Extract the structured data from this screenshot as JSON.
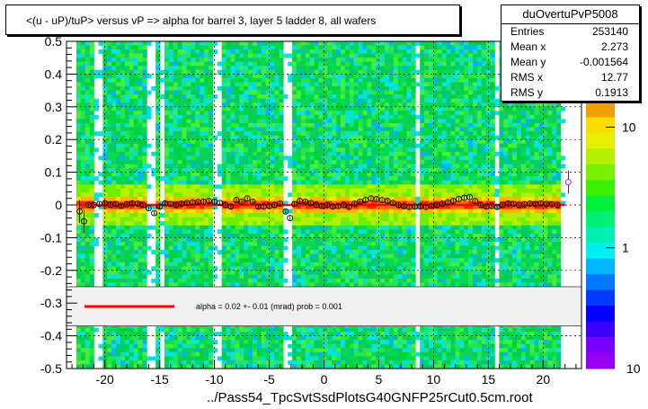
{
  "title": "<(u - uP)/tuP> versus   vP => alpha for barrel 3, layer 5 ladder 8, all wafers",
  "stats": {
    "name": "duOvertuPvP5008",
    "rows": [
      {
        "key": "Entries",
        "value": "253140"
      },
      {
        "key": "Mean x",
        "value": "2.273"
      },
      {
        "key": "Mean y",
        "value": "-0.001564"
      },
      {
        "key": "RMS x",
        "value": "12.77"
      },
      {
        "key": "RMS y",
        "value": "0.1913"
      }
    ]
  },
  "filename": "../Pass54_TpcSvtSsdPlotsG40GNFP25rCut0.5cm.root",
  "colors": {
    "fit_line": "#ff0000",
    "profile_marker": "#000000",
    "band": "#ff3a00"
  },
  "chart_data": {
    "type": "heatmap",
    "xlim": [
      -23.5,
      23.5
    ],
    "ylim": [
      -0.5,
      0.5
    ],
    "x_ticks": [
      -20,
      -15,
      -10,
      -5,
      0,
      5,
      10,
      15,
      20
    ],
    "x_tick_labels": [
      "-20",
      "-15",
      "-10",
      "-5",
      "0",
      "5",
      "10",
      "15",
      "20"
    ],
    "y_ticks": [
      -0.5,
      -0.4,
      -0.3,
      -0.2,
      -0.1,
      0,
      0.1,
      0.2,
      0.3,
      0.4,
      0.5
    ],
    "y_tick_labels": [
      "-0.5",
      "-0.4",
      "-0.3",
      "-0.2",
      "-0.1",
      "0",
      "0.1",
      "0.2",
      "0.3",
      "0.4",
      "0.5"
    ],
    "z_scale": "log",
    "z_ticks": [
      1,
      10
    ],
    "z_tick_labels": [
      "1",
      "10"
    ],
    "z_bottom_label": "10",
    "grid": true,
    "empty_columns_x": [
      -20.6,
      -15.8,
      -14.9,
      -9.7,
      -3.3,
      8.5,
      15.8,
      21.8
    ],
    "fit": {
      "label": "alpha =     0.02 +-  0.01 (mrad) prob = 0.001",
      "value": 0.0
    },
    "profile": [
      {
        "x": -22.3,
        "y": -0.02
      },
      {
        "x": -21.9,
        "y": -0.05
      },
      {
        "x": -21.5,
        "y": 0.0
      },
      {
        "x": -21.0,
        "y": 0.0
      },
      {
        "x": -20.5,
        "y": 0.003
      },
      {
        "x": -20.0,
        "y": 0.005
      },
      {
        "x": -19.5,
        "y": 0.0
      },
      {
        "x": -19.0,
        "y": 0.003
      },
      {
        "x": -18.5,
        "y": -0.003
      },
      {
        "x": -18.0,
        "y": 0.002
      },
      {
        "x": -17.5,
        "y": 0.005
      },
      {
        "x": -17.0,
        "y": 0.004
      },
      {
        "x": -16.5,
        "y": 0.0
      },
      {
        "x": -16.0,
        "y": -0.01
      },
      {
        "x": -15.5,
        "y": -0.025
      },
      {
        "x": -15.0,
        "y": -0.005
      },
      {
        "x": -14.5,
        "y": 0.005
      },
      {
        "x": -14.0,
        "y": 0.003
      },
      {
        "x": -13.5,
        "y": 0.0
      },
      {
        "x": -13.0,
        "y": 0.004
      },
      {
        "x": -12.5,
        "y": 0.006
      },
      {
        "x": -12.0,
        "y": 0.008
      },
      {
        "x": -11.5,
        "y": 0.009
      },
      {
        "x": -11.0,
        "y": 0.01
      },
      {
        "x": -10.5,
        "y": 0.012
      },
      {
        "x": -10.0,
        "y": 0.01
      },
      {
        "x": -9.5,
        "y": 0.006
      },
      {
        "x": -9.0,
        "y": 0.0
      },
      {
        "x": -8.5,
        "y": -0.005
      },
      {
        "x": -8.0,
        "y": 0.015
      },
      {
        "x": -7.5,
        "y": 0.01
      },
      {
        "x": -7.0,
        "y": 0.02
      },
      {
        "x": -6.5,
        "y": 0.01
      },
      {
        "x": -6.0,
        "y": -0.005
      },
      {
        "x": -5.5,
        "y": -0.005
      },
      {
        "x": -5.0,
        "y": -0.003
      },
      {
        "x": -4.5,
        "y": 0.0
      },
      {
        "x": -4.0,
        "y": 0.004
      },
      {
        "x": -3.5,
        "y": -0.02
      },
      {
        "x": -3.1,
        "y": -0.04
      },
      {
        "x": -2.7,
        "y": 0.003
      },
      {
        "x": -2.2,
        "y": 0.012
      },
      {
        "x": -1.7,
        "y": 0.01
      },
      {
        "x": -1.2,
        "y": 0.006
      },
      {
        "x": -0.7,
        "y": 0.0
      },
      {
        "x": -0.2,
        "y": -0.003
      },
      {
        "x": 0.3,
        "y": 0.0
      },
      {
        "x": 0.8,
        "y": -0.005
      },
      {
        "x": 1.3,
        "y": -0.003
      },
      {
        "x": 1.8,
        "y": 0.0
      },
      {
        "x": 2.3,
        "y": -0.006
      },
      {
        "x": 2.8,
        "y": 0.004
      },
      {
        "x": 3.3,
        "y": 0.01
      },
      {
        "x": 3.8,
        "y": 0.015
      },
      {
        "x": 4.3,
        "y": 0.02
      },
      {
        "x": 4.8,
        "y": 0.018
      },
      {
        "x": 5.3,
        "y": 0.015
      },
      {
        "x": 5.8,
        "y": 0.012
      },
      {
        "x": 6.3,
        "y": 0.006
      },
      {
        "x": 6.8,
        "y": 0.0
      },
      {
        "x": 7.3,
        "y": -0.004
      },
      {
        "x": 7.8,
        "y": -0.006
      },
      {
        "x": 8.3,
        "y": -0.005
      },
      {
        "x": 8.8,
        "y": -0.004
      },
      {
        "x": 9.3,
        "y": -0.006
      },
      {
        "x": 9.8,
        "y": -0.003
      },
      {
        "x": 10.3,
        "y": 0.0
      },
      {
        "x": 10.8,
        "y": 0.004
      },
      {
        "x": 11.3,
        "y": 0.008
      },
      {
        "x": 11.8,
        "y": 0.012
      },
      {
        "x": 12.3,
        "y": 0.018
      },
      {
        "x": 12.8,
        "y": 0.022
      },
      {
        "x": 13.3,
        "y": 0.024
      },
      {
        "x": 13.8,
        "y": 0.012
      },
      {
        "x": 14.3,
        "y": 0.0
      },
      {
        "x": 14.8,
        "y": -0.005
      },
      {
        "x": 15.3,
        "y": -0.003
      },
      {
        "x": 15.8,
        "y": -0.006
      },
      {
        "x": 16.3,
        "y": 0.0
      },
      {
        "x": 16.8,
        "y": 0.005
      },
      {
        "x": 17.3,
        "y": 0.003
      },
      {
        "x": 17.8,
        "y": 0.0
      },
      {
        "x": 18.3,
        "y": 0.002
      },
      {
        "x": 18.8,
        "y": 0.004
      },
      {
        "x": 19.3,
        "y": 0.003
      },
      {
        "x": 19.8,
        "y": 0.005
      },
      {
        "x": 20.3,
        "y": 0.003
      },
      {
        "x": 20.8,
        "y": 0.002
      },
      {
        "x": 21.3,
        "y": 0.0
      },
      {
        "x": 22.3,
        "y": 0.07
      }
    ]
  }
}
